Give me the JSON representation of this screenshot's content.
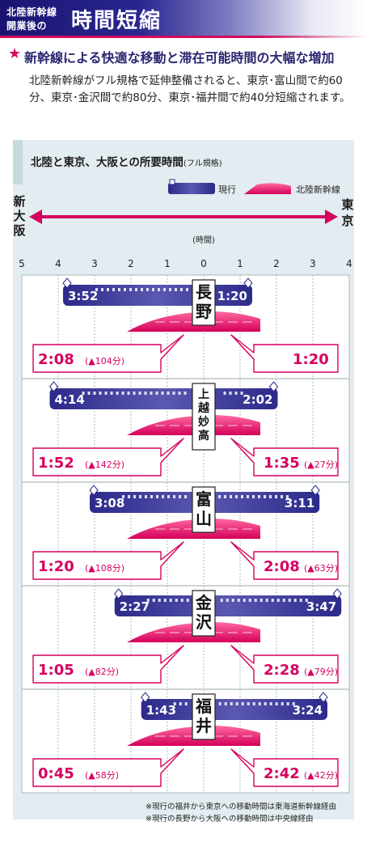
{
  "header": {
    "sub_line1": "北陸新幹線",
    "sub_line2": "開業後の",
    "title": "時間短縮"
  },
  "headline": {
    "star": "★",
    "text": "新幹線による快適な移動と滞在可能時間の大幅な増加"
  },
  "body_text": "北陸新幹線がフル規格で延伸整備されると、東京･富山間で約60分、東京･金沢間で約80分、東京･福井間で約40分短縮されます。",
  "colors": {
    "current": "#2a2a86",
    "shinkansen": "#d6005e",
    "accent_red": "#d40b5c",
    "panel": "#e3ecf0"
  },
  "chart_data": {
    "type": "bar",
    "title": "北陸と東京、大阪との所要時間",
    "title_note": "(フル規格)",
    "legend": [
      {
        "name": "現行",
        "icon": "train-current-icon"
      },
      {
        "name": "北陸新幹線",
        "icon": "train-shinkansen-icon"
      }
    ],
    "axis": {
      "left_label": "新大阪",
      "right_label": "東京",
      "unit_label": "(時間)",
      "left_ticks": [
        "5",
        "4",
        "3",
        "2",
        "1",
        "0"
      ],
      "right_ticks": [
        "1",
        "2",
        "3",
        "4"
      ],
      "left_range": [
        0,
        5
      ],
      "right_range": [
        0,
        4
      ]
    },
    "stations": [
      {
        "name": "長野",
        "vertical": [
          "長",
          "野"
        ],
        "current": {
          "osaka": 3.867,
          "osaka_label": "3:52",
          "tokyo": 1.333,
          "tokyo_label": "1:20"
        },
        "shinkansen": {
          "osaka_label": "2:08",
          "osaka_reduction": "(▲104分)",
          "tokyo_label": "1:20",
          "tokyo_reduction": ""
        }
      },
      {
        "name": "上越妙高",
        "vertical": [
          "上",
          "越",
          "妙",
          "高"
        ],
        "current": {
          "osaka": 4.233,
          "osaka_label": "4:14",
          "tokyo": 2.033,
          "tokyo_label": "2:02"
        },
        "shinkansen": {
          "osaka_label": "1:52",
          "osaka_reduction": "(▲142分)",
          "tokyo_label": "1:35",
          "tokyo_reduction": "(▲27分)"
        }
      },
      {
        "name": "富山",
        "vertical": [
          "富",
          "山"
        ],
        "current": {
          "osaka": 3.133,
          "osaka_label": "3:08",
          "tokyo": 3.183,
          "tokyo_label": "3:11"
        },
        "shinkansen": {
          "osaka_label": "1:20",
          "osaka_reduction": "(▲108分)",
          "tokyo_label": "2:08",
          "tokyo_reduction": "(▲63分)"
        }
      },
      {
        "name": "金沢",
        "vertical": [
          "金",
          "沢"
        ],
        "current": {
          "osaka": 2.45,
          "osaka_label": "2:27",
          "tokyo": 3.783,
          "tokyo_label": "3:47"
        },
        "shinkansen": {
          "osaka_label": "1:05",
          "osaka_reduction": "(▲82分)",
          "tokyo_label": "2:28",
          "tokyo_reduction": "(▲79分)"
        }
      },
      {
        "name": "福井",
        "vertical": [
          "福",
          "井"
        ],
        "current": {
          "osaka": 1.717,
          "osaka_label": "1:43",
          "tokyo": 3.4,
          "tokyo_label": "3:24"
        },
        "shinkansen": {
          "osaka_label": "0:45",
          "osaka_reduction": "(▲58分)",
          "tokyo_label": "2:42",
          "tokyo_reduction": "(▲42分)"
        }
      }
    ],
    "grid": true
  },
  "notes": [
    "※現行の福井から東京への移動時間は東海道新幹線経由",
    "※現行の長野から大阪への移動時間は中央線経由"
  ]
}
